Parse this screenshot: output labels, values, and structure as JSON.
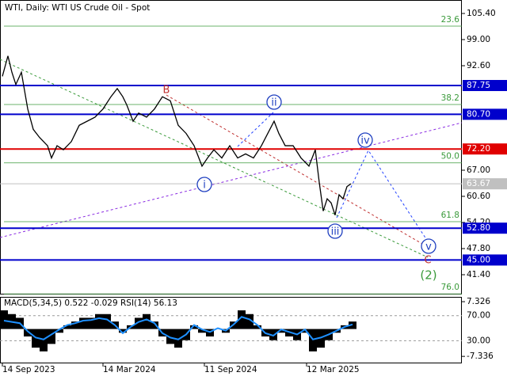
{
  "chart_data": {
    "type": "line",
    "title": "WTI, Daily:  WTI US Crude Oil - Spot",
    "x": [
      3,
      10,
      15,
      20,
      27,
      35,
      42,
      50,
      60,
      65,
      72,
      80,
      90,
      100,
      110,
      120,
      130,
      140,
      148,
      155,
      160,
      168,
      175,
      185,
      195,
      205,
      215,
      225,
      235,
      245,
      255,
      262,
      270,
      280,
      290,
      300,
      310,
      320,
      330,
      338,
      346,
      352,
      360,
      370,
      380,
      390,
      398,
      403,
      408,
      413,
      418,
      423,
      428,
      433,
      438,
      443
    ],
    "series": [
      {
        "color": "#000000",
        "values": [
          90,
          95,
          91,
          88,
          91,
          82,
          77,
          75,
          73,
          70,
          73,
          72,
          74,
          78,
          79,
          80,
          82,
          85,
          87,
          85,
          83,
          79,
          81,
          80,
          82,
          85,
          84,
          78,
          76,
          73,
          68,
          70,
          72,
          70,
          73,
          70,
          71,
          70,
          73,
          76,
          79,
          76,
          73,
          73,
          70,
          68,
          72,
          64,
          57,
          60,
          59,
          56,
          61,
          60,
          63,
          63.67
        ]
      }
    ],
    "xlim": [
      0,
      583
    ],
    "ylim": [
      36.55,
      108.7
    ],
    "xticks": [
      {
        "value": 3,
        "label": "14 Sep 2023"
      },
      {
        "value": 130,
        "label": "14 Mar 2024"
      },
      {
        "value": 258,
        "label": "11 Sep 2024"
      },
      {
        "value": 387,
        "label": "12 Mar 2025"
      }
    ],
    "yticks": [
      {
        "value": 105.4,
        "label": "105.40"
      },
      {
        "value": 99,
        "label": "99.00"
      },
      {
        "value": 92.6,
        "label": "92.60"
      },
      {
        "value": 67,
        "label": "67.00"
      },
      {
        "value": 60.6,
        "label": "60.60"
      },
      {
        "value": 54.2,
        "label": "54.20"
      },
      {
        "value": 47.8,
        "label": "47.80"
      },
      {
        "value": 41.4,
        "label": "41.40"
      }
    ],
    "levels": [
      {
        "value": 87.75,
        "label": "87.75",
        "color": "#0000cc"
      },
      {
        "value": 80.7,
        "label": "80.70",
        "color": "#0000cc"
      },
      {
        "value": 72.2,
        "label": "72.20",
        "color": "#e00000"
      },
      {
        "value": 52.8,
        "label": "52.80",
        "color": "#0000cc"
      },
      {
        "value": 45,
        "label": "45.00",
        "color": "#0000cc"
      }
    ],
    "last": {
      "value": 63.67,
      "label": "63.67",
      "color": "#c0c0c0"
    },
    "fib": [
      {
        "value": 102.3,
        "label": "23.6"
      },
      {
        "value": 83.1,
        "label": "38.2"
      },
      {
        "value": 68.8,
        "label": "50.0"
      },
      {
        "value": 54.4,
        "label": "61.8"
      },
      {
        "value": 36.7,
        "label": "76.0"
      }
    ],
    "fib_color": "#3a9a3a",
    "annotations": [
      {
        "text": "B",
        "color": "#c03030"
      },
      {
        "text": "ii",
        "color": "#2040c0"
      },
      {
        "text": "i",
        "color": "#2040c0"
      },
      {
        "text": "iii",
        "color": "#2040c0"
      },
      {
        "text": "iv",
        "color": "#2040c0"
      },
      {
        "text": "v",
        "color": "#2040c0"
      },
      {
        "text": "C",
        "color": "#c03030"
      },
      {
        "text": "(2)",
        "color": "#3a9a3a"
      }
    ],
    "indicator": {
      "label": "MACD(5,34,5) 0.522 -0.029 RSI(14) 56.13",
      "x": [
        5,
        15,
        25,
        35,
        45,
        55,
        65,
        75,
        85,
        95,
        105,
        115,
        125,
        135,
        145,
        155,
        165,
        175,
        185,
        195,
        205,
        215,
        225,
        235,
        245,
        255,
        265,
        275,
        285,
        295,
        305,
        315,
        325,
        335,
        345,
        355,
        365,
        375,
        385,
        395,
        405,
        415,
        425,
        435,
        445
      ],
      "histogram": [
        5,
        4,
        3,
        -2,
        -5,
        -6,
        -4,
        -1,
        1,
        2,
        3,
        3,
        4,
        4,
        2,
        -1,
        1,
        3,
        4,
        2,
        -2,
        -4,
        -5,
        -3,
        1,
        -1,
        -2,
        0,
        -1,
        2,
        5,
        4,
        1,
        -2,
        -3,
        -1,
        -2,
        -3,
        -1,
        -6,
        -5,
        -3,
        -1,
        1,
        2
      ],
      "rsi": [
        62,
        60,
        58,
        45,
        35,
        32,
        40,
        48,
        55,
        58,
        62,
        63,
        66,
        64,
        55,
        42,
        52,
        60,
        64,
        58,
        42,
        35,
        32,
        40,
        55,
        48,
        44,
        50,
        46,
        56,
        68,
        64,
        55,
        42,
        38,
        48,
        44,
        40,
        48,
        32,
        35,
        40,
        46,
        52,
        56
      ],
      "hist_color": "#000000",
      "rsi_color": "#1e90ff",
      "ylim": [
        -9,
        8.4
      ],
      "y2lim": [
        -5,
        98.75
      ],
      "yticks": [
        {
          "value": 7.326,
          "label": "7.326"
        },
        {
          "value": -7.336,
          "label": "-7.336"
        }
      ],
      "y2ticks": [
        {
          "value": 70,
          "label": "70.00"
        },
        {
          "value": 30,
          "label": "30.00"
        }
      ]
    }
  }
}
